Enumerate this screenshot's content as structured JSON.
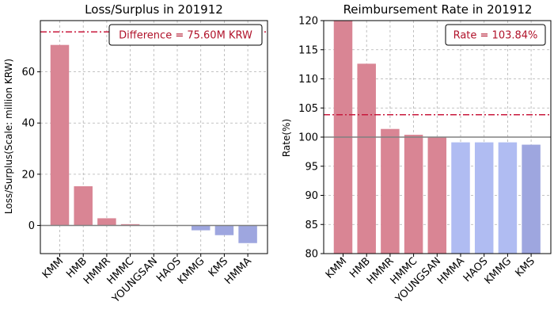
{
  "chart_data": [
    {
      "type": "bar",
      "title": "Loss/Surplus in 201912",
      "xlabel": "",
      "ylabel": "Loss/Surplus(Scale: million KRW)",
      "categories": [
        "KMM",
        "HMB",
        "HMMR",
        "HMMC",
        "YOUNGSAN",
        "HAOS",
        "KMMG",
        "KMS",
        "HMMA"
      ],
      "values": [
        70.5,
        15.3,
        2.8,
        0.5,
        0.1,
        0.05,
        -1.9,
        -3.8,
        -6.9
      ],
      "ylim": [
        -11,
        80
      ],
      "yticks": [
        0,
        20,
        40,
        60
      ],
      "reference_line": 75.6,
      "zero_line": 0,
      "annotation": "Difference = 75.60M KRW",
      "grid": true,
      "colors": {
        "positive": "#d98594",
        "negative": "#9ea6df",
        "reference": "#c8193c",
        "annotation_text": "#b0122a",
        "zero_line": "#808080"
      }
    },
    {
      "type": "bar",
      "title": "Reimbursement Rate in 201912",
      "xlabel": "",
      "ylabel": "Rate(%)",
      "categories": [
        "KMM",
        "HMB",
        "HMMR",
        "HMMC",
        "YOUNGSAN",
        "HMMA",
        "HAOS",
        "KMMG",
        "KMS"
      ],
      "values": [
        120.0,
        112.6,
        101.4,
        100.4,
        100.0,
        99.1,
        99.1,
        99.1,
        98.7
      ],
      "ylim": [
        80,
        120
      ],
      "yticks": [
        80,
        85,
        90,
        95,
        100,
        105,
        110,
        115,
        120
      ],
      "reference_line": 103.84,
      "baseline": 100,
      "annotation": "Rate = 103.84%",
      "grid": true,
      "colors": {
        "above": "#d98594",
        "below": "#b0bcf2",
        "lowest": "#9ea6df",
        "reference": "#c8193c",
        "annotation_text": "#b0122a",
        "baseline": "#808080"
      }
    }
  ]
}
